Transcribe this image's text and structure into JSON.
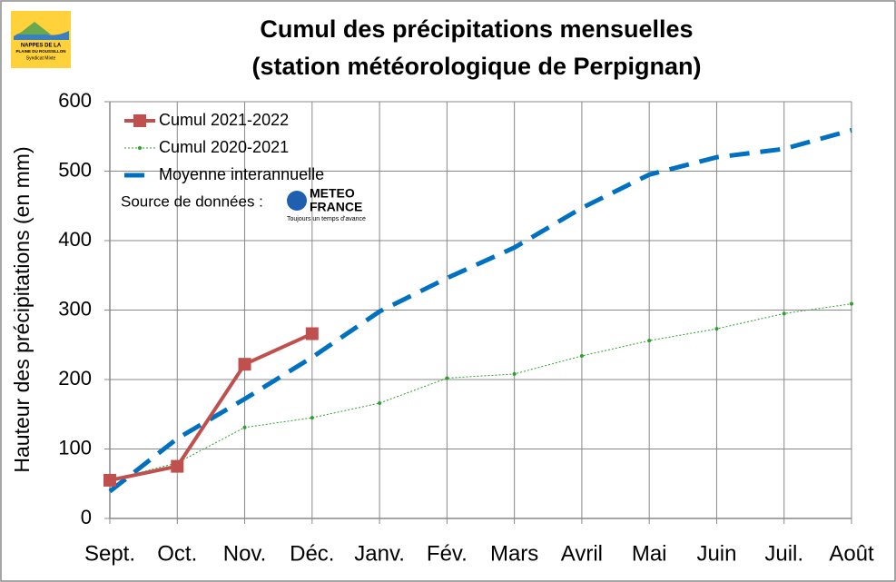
{
  "chart_data": {
    "type": "line",
    "title": "Cumul des précipitations mensuelles",
    "subtitle": "(station météorologique de Perpignan)",
    "y_label": "Hauteur des précipitations (en mm)",
    "categories": [
      "Sept.",
      "Oct.",
      "Nov.",
      "Déc.",
      "Janv.",
      "Fév.",
      "Mars",
      "Avril",
      "Mai",
      "Juin",
      "Juil.",
      "Août"
    ],
    "series": [
      {
        "name": "Cumul 2021-2022",
        "color": "#c0504d",
        "line_style": "solid",
        "marker": "square",
        "values": [
          55,
          75,
          222,
          266,
          null,
          null,
          null,
          null,
          null,
          null,
          null,
          null
        ]
      },
      {
        "name": "Cumul 2020-2021",
        "color": "#2ca02c",
        "line_style": "dotted",
        "marker": "dot",
        "values": [
          55,
          80,
          131,
          145,
          166,
          202,
          208,
          234,
          256,
          273,
          295,
          309
        ]
      },
      {
        "name": "Moyenne interannuelle",
        "color": "#0070c0",
        "line_style": "dashed",
        "marker": "none",
        "values": [
          39,
          115,
          172,
          232,
          298,
          346,
          390,
          447,
          495,
          520,
          532,
          559
        ]
      }
    ],
    "ylim": [
      0,
      600
    ],
    "yticks": [
      0,
      100,
      200,
      300,
      400,
      500,
      600
    ],
    "grid": true,
    "legend": "top-left",
    "source_label": "Source de données :",
    "source_logo": {
      "line1": "METEO",
      "line2": "FRANCE",
      "tagline": "Toujours un temps d'avance"
    },
    "brand_logo": {
      "line1": "NAPPES DE LA",
      "line2": "PLAINE DU ROUSSILLON",
      "line3": "Syndicat Mixte"
    }
  }
}
